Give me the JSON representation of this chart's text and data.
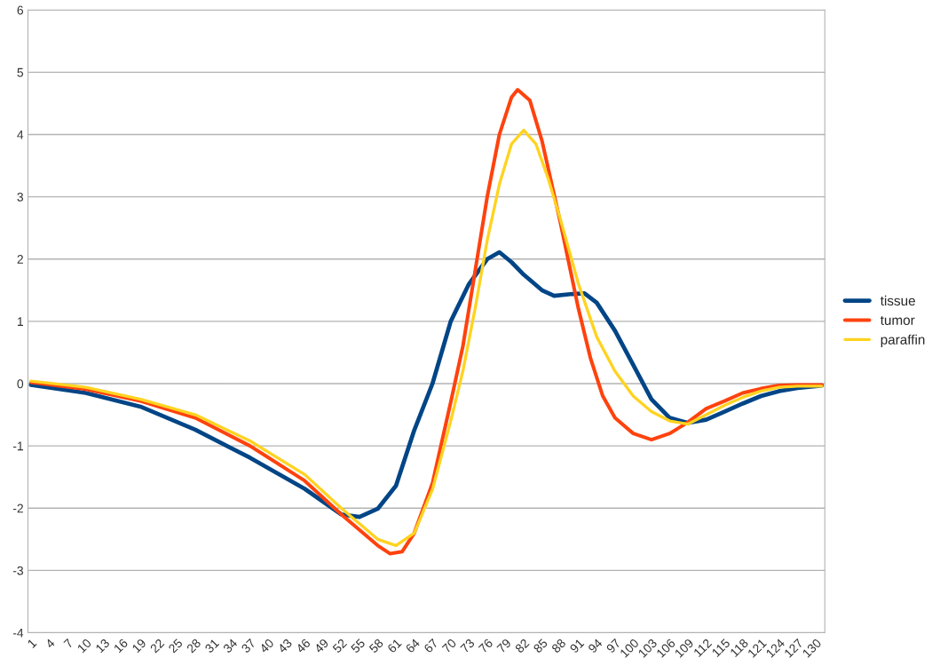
{
  "chart_data": {
    "type": "line",
    "xlim": [
      0.5,
      131.5
    ],
    "xticks": [
      1,
      4,
      7,
      10,
      13,
      16,
      19,
      22,
      25,
      28,
      31,
      34,
      37,
      40,
      43,
      46,
      49,
      52,
      55,
      58,
      61,
      64,
      67,
      70,
      73,
      76,
      79,
      82,
      85,
      88,
      91,
      94,
      97,
      100,
      103,
      106,
      109,
      112,
      115,
      118,
      121,
      124,
      127,
      130
    ],
    "ylim": [
      -4,
      6
    ],
    "yticks": [
      -4,
      -3,
      -2,
      -1,
      0,
      1,
      2,
      3,
      4,
      5,
      6
    ],
    "grid": "y",
    "legend": "right",
    "marker": "none",
    "line_style": "solid",
    "series": [
      {
        "name": "tissue",
        "color": "#004586",
        "x": [
          1,
          10,
          19,
          28,
          37,
          46,
          52,
          55,
          58,
          61,
          64,
          67,
          70,
          73,
          76,
          78,
          80,
          82,
          85,
          87,
          90,
          92,
          94,
          97,
          100,
          103,
          106,
          109,
          112,
          115,
          118,
          121,
          124,
          127,
          130,
          131
        ],
        "values": [
          -0.02,
          -0.15,
          -0.37,
          -0.74,
          -1.19,
          -1.69,
          -2.1,
          -2.14,
          -2.01,
          -1.64,
          -0.75,
          0.0,
          1.0,
          1.6,
          2.0,
          2.11,
          1.95,
          1.75,
          1.5,
          1.41,
          1.44,
          1.45,
          1.3,
          0.85,
          0.3,
          -0.25,
          -0.55,
          -0.63,
          -0.58,
          -0.45,
          -0.32,
          -0.2,
          -0.12,
          -0.07,
          -0.04,
          -0.03
        ]
      },
      {
        "name": "tumor",
        "color": "#ff420e",
        "x": [
          1,
          10,
          19,
          28,
          37,
          46,
          52,
          55,
          58,
          60,
          62,
          64,
          67,
          70,
          72,
          74,
          76,
          78,
          80,
          81,
          83,
          85,
          88,
          91,
          93,
          95,
          97,
          100,
          103,
          106,
          109,
          112,
          115,
          118,
          121,
          124,
          127,
          131
        ],
        "values": [
          0.02,
          -0.09,
          -0.28,
          -0.55,
          -1.0,
          -1.56,
          -2.1,
          -2.35,
          -2.6,
          -2.73,
          -2.7,
          -2.4,
          -1.6,
          -0.3,
          0.6,
          1.8,
          3.0,
          4.0,
          4.6,
          4.72,
          4.55,
          3.9,
          2.6,
          1.2,
          0.4,
          -0.2,
          -0.55,
          -0.8,
          -0.9,
          -0.8,
          -0.62,
          -0.4,
          -0.28,
          -0.15,
          -0.08,
          -0.03,
          -0.02,
          -0.02
        ]
      },
      {
        "name": "paraffin",
        "color": "#ffd320",
        "x": [
          1,
          10,
          19,
          28,
          37,
          46,
          52,
          55,
          58,
          61,
          64,
          67,
          70,
          72,
          74,
          76,
          78,
          80,
          82,
          84,
          86,
          88,
          91,
          94,
          97,
          100,
          103,
          106,
          109,
          112,
          115,
          118,
          121,
          124,
          127,
          131
        ],
        "values": [
          0.04,
          -0.06,
          -0.25,
          -0.5,
          -0.92,
          -1.46,
          -2.0,
          -2.25,
          -2.5,
          -2.6,
          -2.4,
          -1.7,
          -0.6,
          0.2,
          1.2,
          2.3,
          3.2,
          3.85,
          4.07,
          3.85,
          3.3,
          2.65,
          1.6,
          0.75,
          0.2,
          -0.2,
          -0.45,
          -0.6,
          -0.65,
          -0.5,
          -0.35,
          -0.22,
          -0.12,
          -0.06,
          -0.04,
          -0.04
        ]
      }
    ]
  }
}
